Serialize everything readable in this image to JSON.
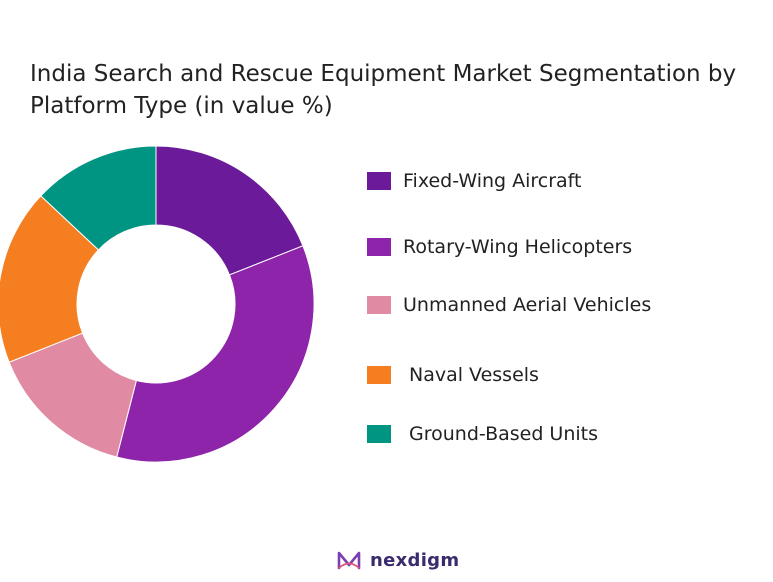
{
  "chart_data": {
    "type": "pie",
    "title": "India Search and Rescue Equipment Market Segmentation by Platform Type (in value %)",
    "donut": true,
    "legend_position": "right",
    "categories": [
      "Fixed-Wing Aircraft",
      "Rotary-Wing Helicopters",
      "Unmanned Aerial Vehicles",
      "Naval Vessels",
      "Ground-Based Units"
    ],
    "values": [
      19,
      35,
      15,
      18,
      13
    ],
    "colors": [
      "#6b1a99",
      "#8e24aa",
      "#e08aa3",
      "#f47e20",
      "#009483"
    ]
  },
  "brand": {
    "name": "nexdigm",
    "icon": "nexdigm-logo-icon",
    "color": "#3a2a6e"
  }
}
